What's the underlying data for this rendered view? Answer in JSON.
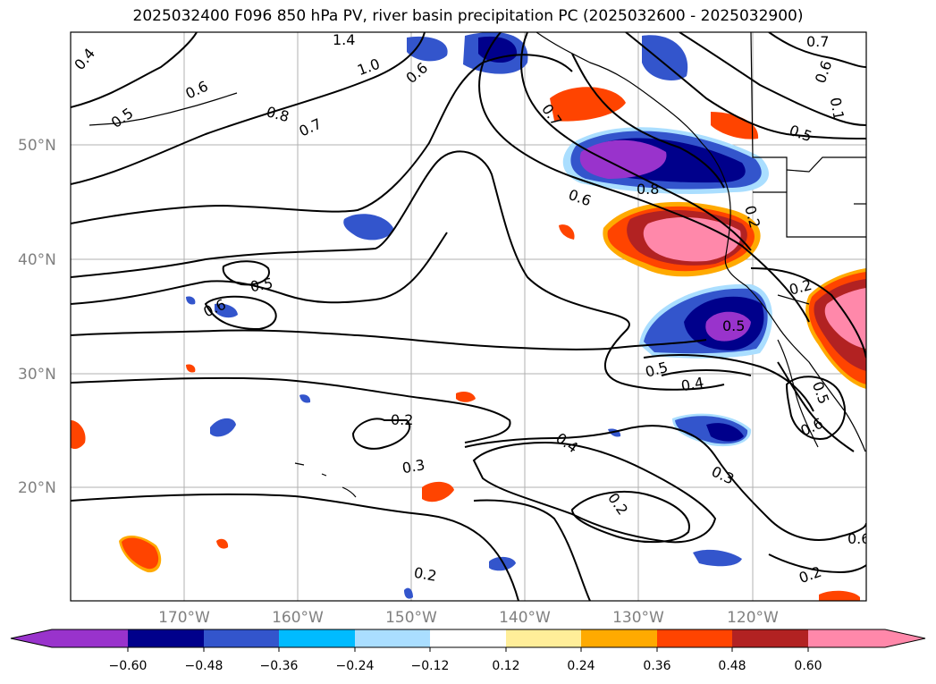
{
  "title": "2025032400 F096 850 hPa PV, river basin precipitation PC (2025032600 - 2025032900)",
  "map": {
    "lat_labels": [
      "50°N",
      "40°N",
      "30°N",
      "20°N"
    ],
    "lon_labels": [
      "170°W",
      "160°W",
      "150°W",
      "140°W",
      "130°W",
      "120°W"
    ],
    "contour_labels": [
      "0.4",
      "0.5",
      "0.6",
      "0.8",
      "0.7",
      "1.4",
      "1.0",
      "0.6",
      "0.7",
      "0.6",
      "0.1",
      "0.5",
      "0.7",
      "0.6",
      "0.8",
      "0.2",
      "0.5",
      "0.6",
      "0.5",
      "0.2",
      "0.5",
      "0.4",
      "0.5",
      "0.6",
      "0.2",
      "0.3",
      "0.4",
      "0.2",
      "0.3",
      "0.2",
      "0.2",
      "0.6"
    ]
  },
  "colorbar": {
    "colors": [
      "#9933cc",
      "#00008b",
      "#3355cc",
      "#00bbff",
      "#aadeff",
      "#ffffff",
      "#ffee99",
      "#ffaa00",
      "#ff4400",
      "#b22222",
      "#ff88aa"
    ],
    "ticks": [
      "−0.60",
      "−0.48",
      "−0.36",
      "−0.24",
      "−0.12",
      "0.12",
      "0.24",
      "0.36",
      "0.48",
      "0.60"
    ]
  }
}
